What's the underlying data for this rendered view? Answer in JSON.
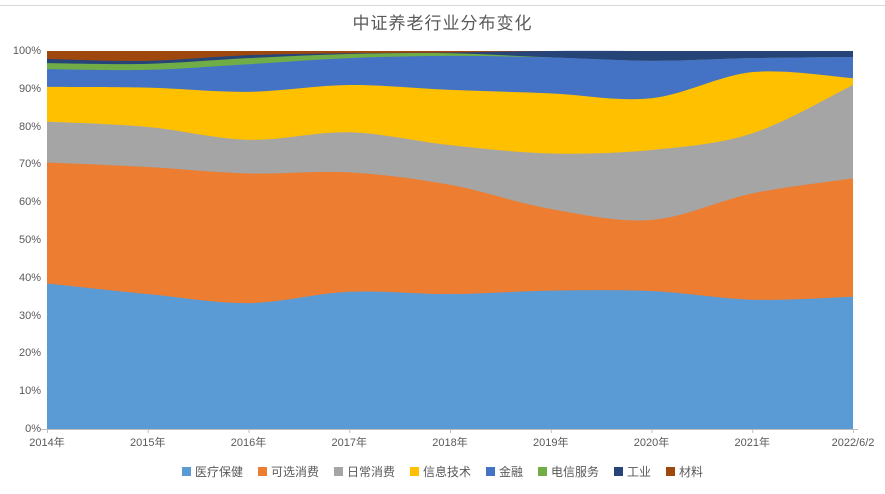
{
  "title": "中证养老行业分布变化",
  "chart_data": {
    "type": "area",
    "stacked_percent": true,
    "title": "中证养老行业分布变化",
    "xlabel": "",
    "ylabel": "",
    "ylim": [
      0,
      100
    ],
    "grid": false,
    "legend_position": "bottom",
    "y_ticks": [
      "0%",
      "10%",
      "20%",
      "30%",
      "40%",
      "50%",
      "60%",
      "70%",
      "80%",
      "90%",
      "100%"
    ],
    "categories": [
      "2014年",
      "2015年",
      "2016年",
      "2017年",
      "2018年",
      "2019年",
      "2020年",
      "2021年",
      "2022/6/2"
    ],
    "series": [
      {
        "name": "医疗保健",
        "color": "#5B9BD5",
        "values": [
          38.5,
          35.7,
          33.3,
          36.3,
          35.7,
          36.6,
          36.5,
          34.2,
          35.0
        ]
      },
      {
        "name": "可选消费",
        "color": "#ED7D31",
        "values": [
          32.0,
          33.6,
          34.3,
          31.6,
          28.9,
          21.6,
          18.8,
          28.1,
          31.3
        ]
      },
      {
        "name": "日常消费",
        "color": "#A5A5A5",
        "values": [
          10.8,
          10.6,
          8.9,
          10.6,
          10.5,
          14.7,
          18.5,
          15.9,
          24.7
        ]
      },
      {
        "name": "信息技术",
        "color": "#FFC000",
        "values": [
          9.2,
          10.4,
          12.7,
          12.5,
          14.6,
          15.9,
          13.7,
          16.2,
          1.8
        ]
      },
      {
        "name": "金融",
        "color": "#4472C4",
        "values": [
          4.7,
          4.7,
          7.3,
          7.1,
          9.0,
          9.5,
          9.9,
          3.7,
          5.6
        ]
      },
      {
        "name": "电信服务",
        "color": "#70AD47",
        "values": [
          1.6,
          1.6,
          1.6,
          1.1,
          0.7,
          0.0,
          0.0,
          0.0,
          0.0
        ]
      },
      {
        "name": "工业",
        "color": "#264478",
        "values": [
          1.1,
          0.8,
          0.8,
          0.2,
          0.2,
          1.7,
          2.6,
          1.9,
          1.6
        ]
      },
      {
        "name": "材料",
        "color": "#9E480E",
        "values": [
          2.1,
          2.6,
          1.1,
          0.6,
          0.4,
          0.0,
          0.0,
          0.0,
          0.0
        ]
      }
    ],
    "axis_color": "#BFBFBF",
    "text_color": "#595959"
  }
}
